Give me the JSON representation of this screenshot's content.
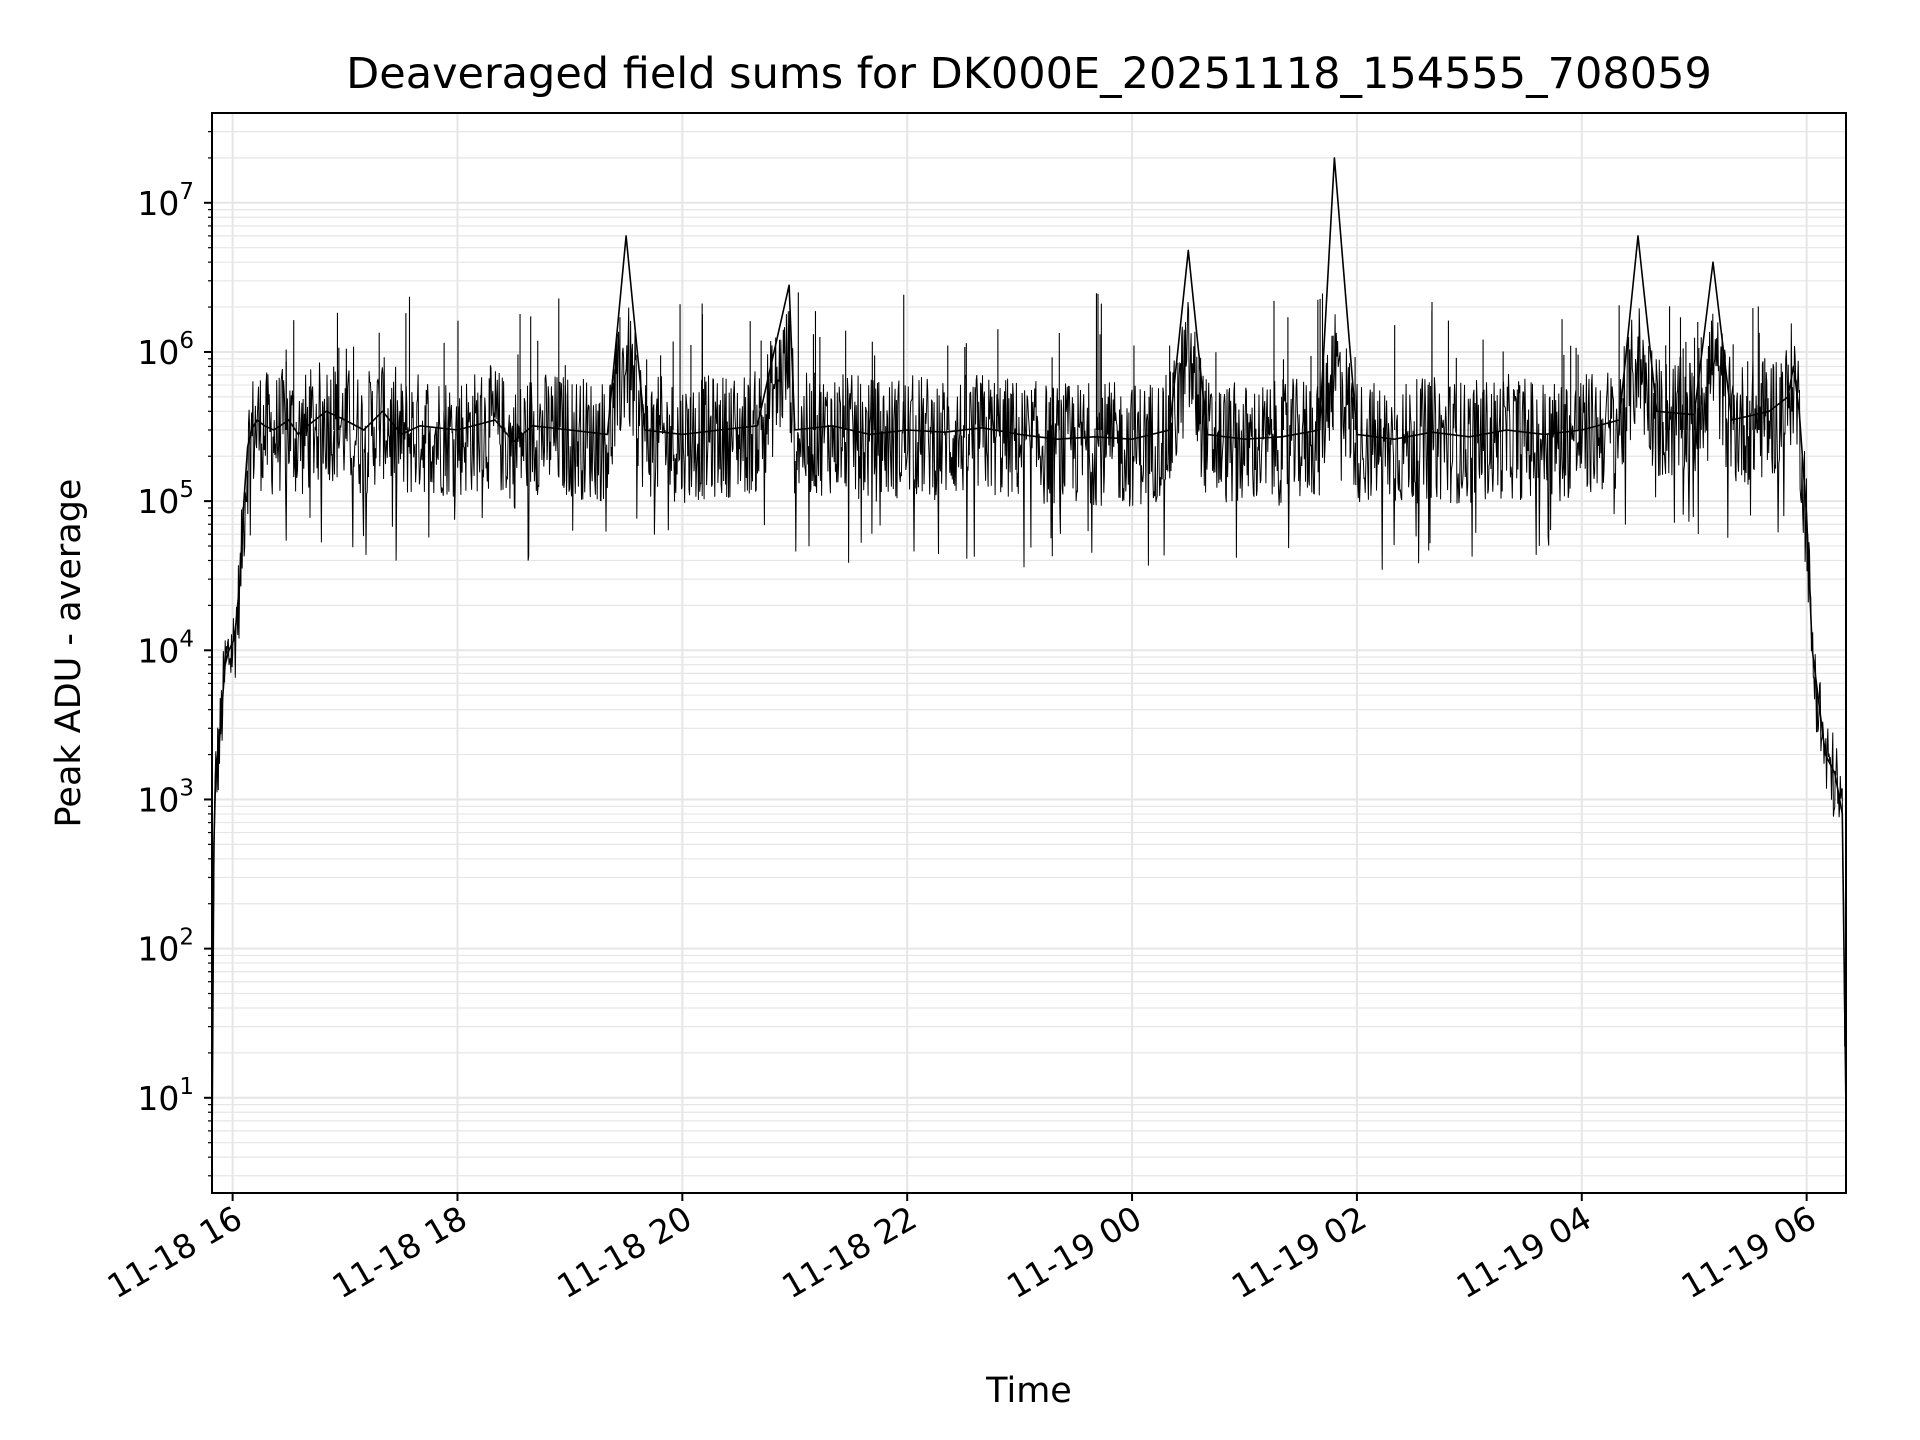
{
  "chart_data": {
    "type": "line",
    "title": "Deaveraged field sums for DK000E_20251118_154555_708059",
    "xlabel": "Time",
    "ylabel": "Peak ADU - average",
    "yscale": "log",
    "grid": true,
    "xlim": [
      "2025-11-18 15:49",
      "2025-11-19 06:21"
    ],
    "ylim": [
      2.3,
      40000000
    ],
    "x_ticks": [
      "11-18 16",
      "11-18 18",
      "11-18 20",
      "11-18 22",
      "11-19 00",
      "11-19 02",
      "11-19 04",
      "11-19 06"
    ],
    "y_ticks": [
      {
        "base": "10",
        "exp": "1",
        "value": 10
      },
      {
        "base": "10",
        "exp": "2",
        "value": 100
      },
      {
        "base": "10",
        "exp": "3",
        "value": 1000
      },
      {
        "base": "10",
        "exp": "4",
        "value": 10000
      },
      {
        "base": "10",
        "exp": "5",
        "value": 100000
      },
      {
        "base": "10",
        "exp": "6",
        "value": 1000000
      },
      {
        "base": "10",
        "exp": "7",
        "value": 10000000
      }
    ],
    "line_color": "#000000",
    "grid_color": "#e6e6e6",
    "series": [
      {
        "x": [
          "2025-11-18 15:49",
          "2025-11-18 15:50",
          "2025-11-18 15:51",
          "2025-11-18 15:53",
          "2025-11-18 15:56",
          "2025-11-18 15:58",
          "2025-11-18 16:01",
          "2025-11-18 16:04",
          "2025-11-18 16:06",
          "2025-11-18 16:08",
          "2025-11-18 16:10",
          "2025-11-18 16:13",
          "2025-11-18 16:17",
          "2025-11-18 16:22",
          "2025-11-18 16:30",
          "2025-11-18 16:35",
          "2025-11-18 16:40",
          "2025-11-18 16:50",
          "2025-11-18 17:00",
          "2025-11-18 17:10",
          "2025-11-18 17:20",
          "2025-11-18 17:30",
          "2025-11-18 17:40",
          "2025-11-18 18:00",
          "2025-11-18 18:20",
          "2025-11-18 18:30",
          "2025-11-18 18:40",
          "2025-11-18 19:00",
          "2025-11-18 19:20",
          "2025-11-18 19:30",
          "2025-11-18 19:40",
          "2025-11-18 20:00",
          "2025-11-18 20:20",
          "2025-11-18 20:40",
          "2025-11-18 20:57",
          "2025-11-18 21:00",
          "2025-11-18 21:20",
          "2025-11-18 21:40",
          "2025-11-18 22:00",
          "2025-11-18 22:20",
          "2025-11-18 22:40",
          "2025-11-18 23:00",
          "2025-11-18 23:20",
          "2025-11-18 23:40",
          "2025-11-19 00:00",
          "2025-11-19 00:20",
          "2025-11-19 00:30",
          "2025-11-19 00:40",
          "2025-11-19 01:00",
          "2025-11-19 01:20",
          "2025-11-19 01:40",
          "2025-11-19 01:48",
          "2025-11-19 02:00",
          "2025-11-19 02:20",
          "2025-11-19 02:40",
          "2025-11-19 03:00",
          "2025-11-19 03:20",
          "2025-11-19 03:40",
          "2025-11-19 04:00",
          "2025-11-19 04:20",
          "2025-11-19 04:30",
          "2025-11-19 04:40",
          "2025-11-19 05:00",
          "2025-11-19 05:10",
          "2025-11-19 05:20",
          "2025-11-19 05:40",
          "2025-11-19 05:50",
          "2025-11-19 05:53",
          "2025-11-19 05:56",
          "2025-11-19 06:00",
          "2025-11-19 06:03",
          "2025-11-19 06:06",
          "2025-11-19 06:10",
          "2025-11-19 06:15",
          "2025-11-19 06:19",
          "2025-11-19 06:21"
        ],
        "y": [
          4,
          500,
          1500,
          2500,
          8000,
          10000,
          12000,
          30000,
          100000,
          230000,
          300000,
          350000,
          320000,
          300000,
          350000,
          280000,
          320000,
          400000,
          350000,
          300000,
          400000,
          280000,
          320000,
          300000,
          350000,
          250000,
          320000,
          300000,
          280000,
          6000000,
          300000,
          280000,
          300000,
          320000,
          2800000,
          300000,
          320000,
          280000,
          300000,
          290000,
          310000,
          280000,
          260000,
          270000,
          260000,
          300000,
          4800000,
          280000,
          260000,
          270000,
          300000,
          20000000,
          280000,
          260000,
          290000,
          270000,
          300000,
          280000,
          300000,
          350000,
          6000000,
          400000,
          380000,
          4000000,
          350000,
          400000,
          500000,
          800000,
          400000,
          80000,
          10000,
          5000,
          2000,
          1500,
          800,
          8
        ]
      }
    ]
  }
}
